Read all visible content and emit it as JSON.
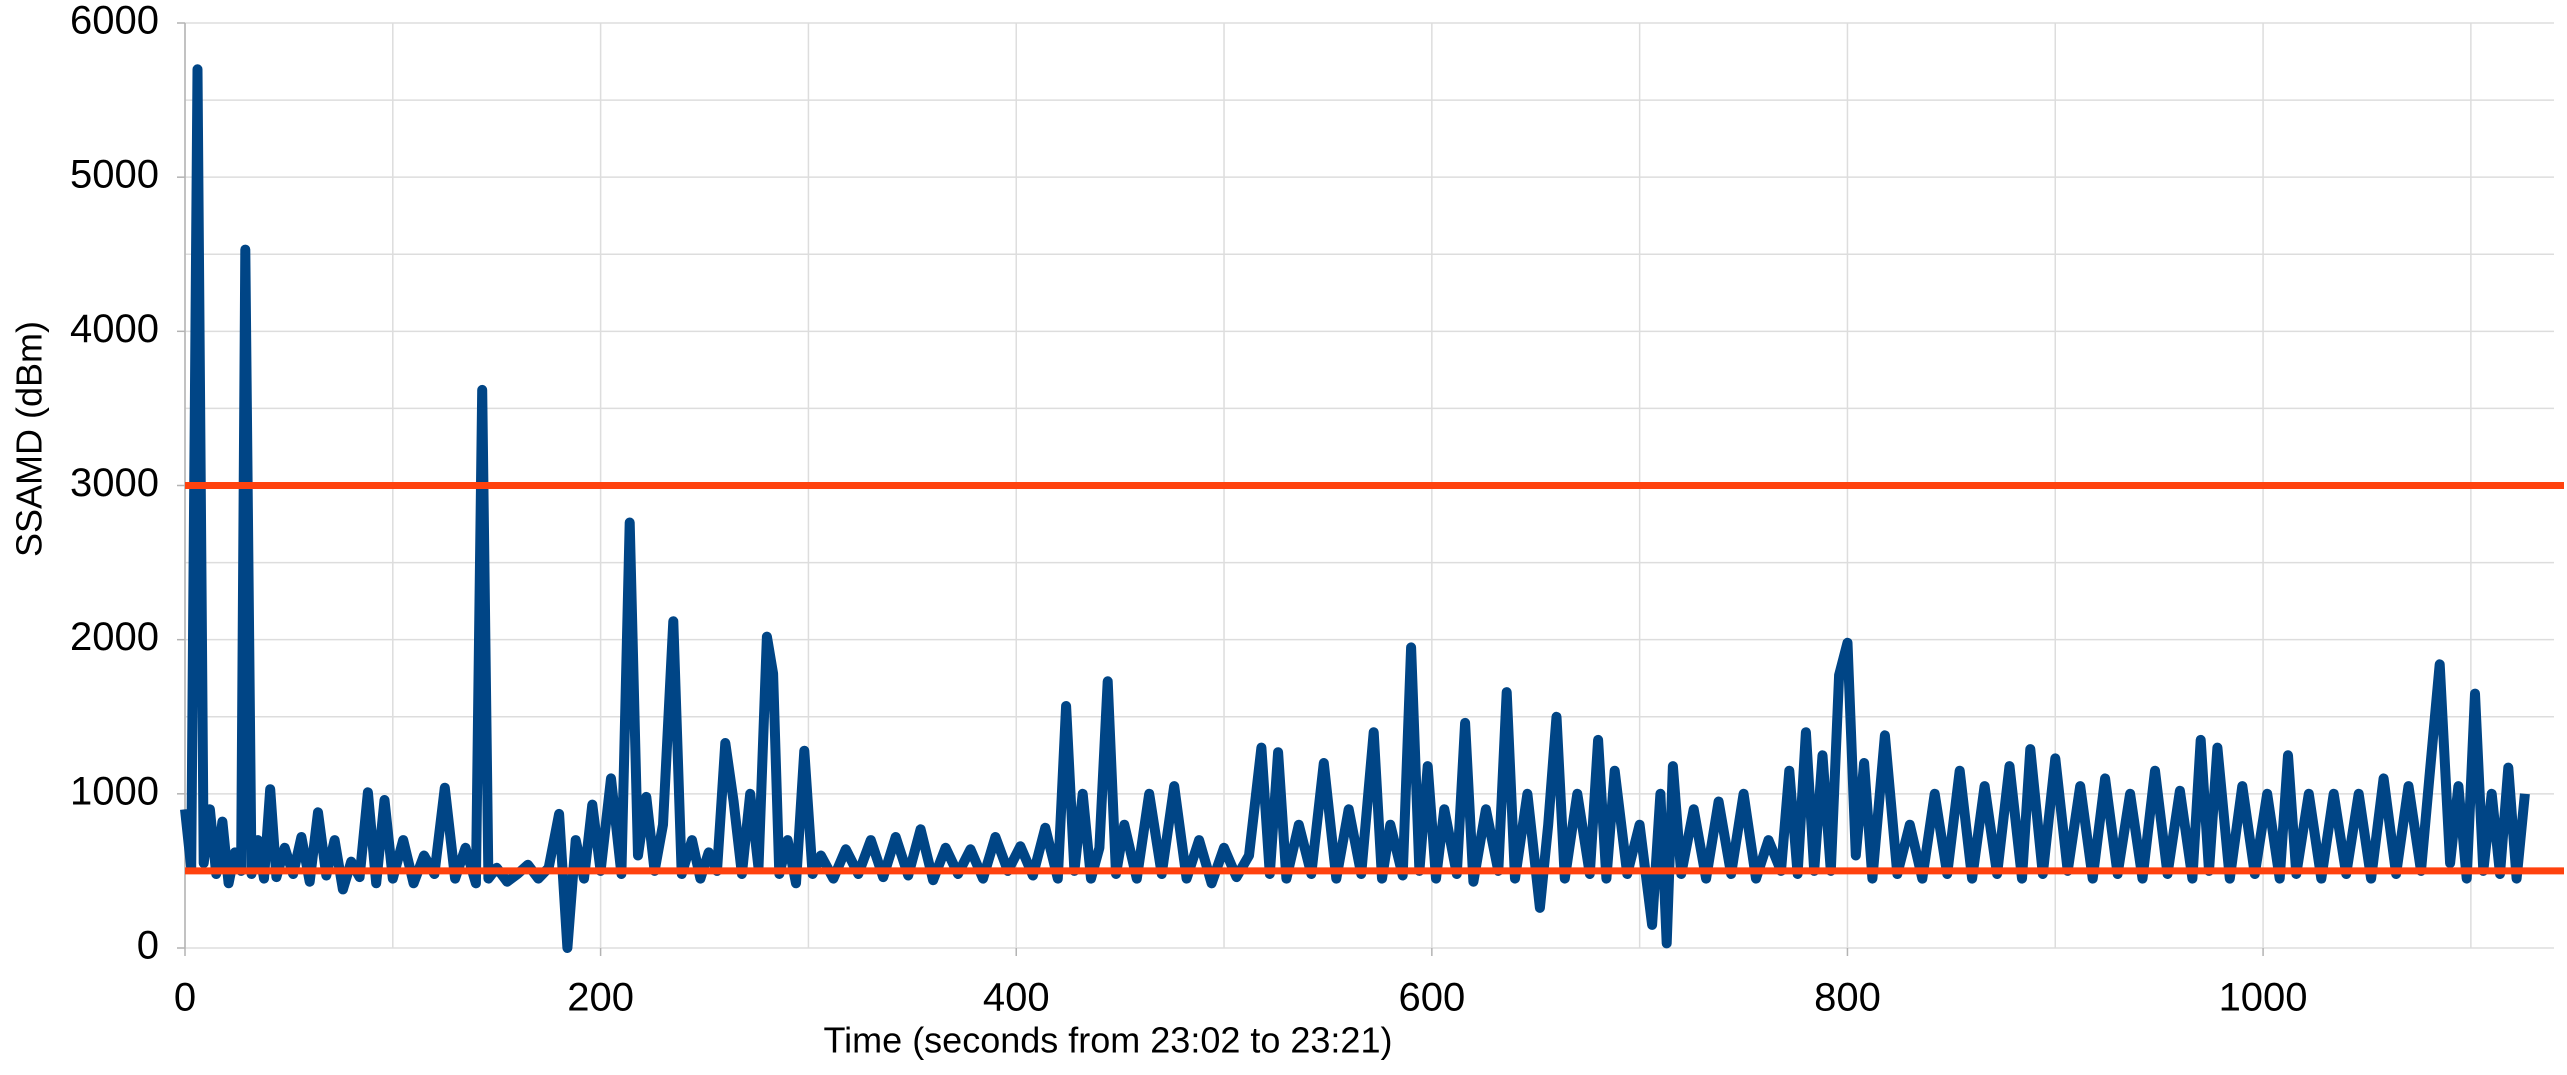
{
  "chart_data": {
    "type": "line",
    "xlabel": "Time (seconds from 23:02 to 23:21)",
    "ylabel": "SSAMD (dBm)",
    "xlim": [
      0,
      1140
    ],
    "ylim": [
      0,
      6000
    ],
    "xticks": [
      0,
      200,
      400,
      600,
      800,
      1000
    ],
    "yticks": [
      0,
      1000,
      2000,
      3000,
      4000,
      5000,
      6000
    ],
    "xgridlines": [
      0,
      100,
      200,
      300,
      400,
      500,
      600,
      700,
      800,
      900,
      1000,
      1100
    ],
    "ygridlines": [
      0,
      500,
      1000,
      1500,
      2000,
      2500,
      3000,
      3500,
      4000,
      4500,
      5000,
      5500,
      6000
    ],
    "grid": true,
    "hlines": [
      {
        "value": 3000,
        "color": "#ff420e"
      },
      {
        "value": 500,
        "color": "#ff420e"
      }
    ],
    "x": [
      0,
      3,
      6,
      9,
      12,
      15,
      18,
      21,
      24,
      27,
      29,
      32,
      35,
      38,
      41,
      44,
      48,
      52,
      56,
      60,
      64,
      68,
      72,
      76,
      80,
      84,
      88,
      92,
      96,
      100,
      105,
      110,
      115,
      120,
      125,
      130,
      135,
      140,
      143,
      146,
      150,
      155,
      160,
      165,
      170,
      175,
      180,
      184,
      188,
      192,
      196,
      200,
      205,
      210,
      214,
      218,
      222,
      226,
      230,
      235,
      239,
      244,
      248,
      252,
      256,
      260,
      264,
      268,
      272,
      276,
      280,
      283,
      286,
      290,
      294,
      298,
      302,
      306,
      312,
      318,
      324,
      330,
      336,
      342,
      348,
      354,
      360,
      366,
      372,
      378,
      384,
      390,
      396,
      402,
      408,
      414,
      420,
      424,
      428,
      432,
      436,
      440,
      444,
      448,
      452,
      458,
      464,
      470,
      476,
      482,
      488,
      494,
      500,
      506,
      512,
      518,
      522,
      526,
      530,
      536,
      542,
      548,
      554,
      560,
      566,
      572,
      576,
      580,
      586,
      590,
      594,
      598,
      602,
      606,
      612,
      616,
      620,
      626,
      632,
      636,
      640,
      646,
      652,
      656,
      660,
      664,
      670,
      676,
      680,
      684,
      688,
      694,
      700,
      706,
      710,
      713,
      716,
      720,
      726,
      732,
      738,
      744,
      750,
      756,
      762,
      768,
      772,
      776,
      780,
      784,
      788,
      792,
      796,
      800,
      804,
      808,
      812,
      818,
      824,
      830,
      836,
      842,
      848,
      854,
      860,
      866,
      872,
      878,
      884,
      888,
      894,
      900,
      906,
      912,
      918,
      924,
      930,
      936,
      942,
      948,
      954,
      960,
      966,
      970,
      974,
      978,
      984,
      990,
      996,
      1002,
      1008,
      1012,
      1016,
      1022,
      1028,
      1034,
      1040,
      1046,
      1052,
      1058,
      1064,
      1070,
      1076,
      1080,
      1085,
      1090,
      1094,
      1098,
      1102,
      1106,
      1110,
      1114,
      1118,
      1122,
      1126
    ],
    "series": [
      {
        "color": "#004586",
        "values": [
          900,
          520,
          5700,
          550,
          900,
          480,
          820,
          420,
          620,
          500,
          4530,
          480,
          700,
          450,
          1030,
          460,
          650,
          480,
          720,
          430,
          880,
          470,
          700,
          380,
          560,
          460,
          1010,
          420,
          960,
          450,
          700,
          420,
          600,
          480,
          1040,
          450,
          650,
          420,
          3620,
          450,
          520,
          430,
          480,
          540,
          450,
          520,
          870,
          0,
          700,
          450,
          930,
          500,
          1100,
          480,
          2760,
          600,
          980,
          500,
          800,
          2120,
          480,
          700,
          450,
          620,
          500,
          1330,
          950,
          480,
          1000,
          520,
          2020,
          1780,
          480,
          700,
          420,
          1280,
          480,
          600,
          450,
          640,
          480,
          700,
          460,
          720,
          470,
          770,
          440,
          650,
          480,
          640,
          450,
          720,
          500,
          660,
          470,
          780,
          450,
          1570,
          500,
          1000,
          450,
          650,
          1730,
          480,
          800,
          450,
          1000,
          480,
          1050,
          450,
          700,
          420,
          650,
          460,
          600,
          1300,
          480,
          1270,
          450,
          800,
          480,
          1200,
          450,
          900,
          480,
          1400,
          450,
          800,
          470,
          1950,
          500,
          1180,
          450,
          900,
          480,
          1460,
          430,
          900,
          500,
          1660,
          450,
          1000,
          260,
          800,
          1500,
          450,
          1000,
          480,
          1350,
          450,
          1150,
          480,
          800,
          150,
          1000,
          30,
          1180,
          480,
          900,
          450,
          950,
          480,
          1000,
          450,
          700,
          500,
          1150,
          480,
          1400,
          500,
          1250,
          500,
          1770,
          1980,
          600,
          1200,
          450,
          1380,
          480,
          800,
          450,
          1000,
          480,
          1150,
          450,
          1050,
          480,
          1180,
          450,
          1290,
          480,
          1230,
          500,
          1050,
          450,
          1100,
          480,
          1000,
          450,
          1150,
          480,
          1020,
          450,
          1350,
          500,
          1300,
          450,
          1050,
          480,
          1000,
          450,
          1250,
          480,
          1000,
          450,
          1000,
          480,
          1000,
          450,
          1100,
          480,
          1050,
          500,
          1100,
          1840,
          550,
          1050,
          450,
          1650,
          500,
          1000,
          480,
          1170,
          450,
          1000
        ]
      }
    ]
  }
}
